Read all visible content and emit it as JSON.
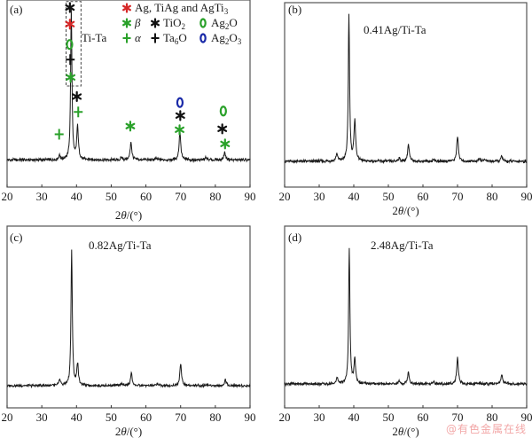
{
  "chart_data": [
    {
      "type": "line",
      "panel_tag": "(a)",
      "title": "",
      "xlabel": "2θ/(°)",
      "ylabel": "",
      "xlim": [
        20,
        90
      ],
      "ylim": [
        -18,
        106
      ],
      "xticks": [
        20,
        30,
        40,
        50,
        60,
        70,
        80,
        90
      ],
      "grid": false,
      "series": [
        {
          "name": "Ti-Ta",
          "baseline": 0,
          "peaks": [
            {
              "x": 35.1,
              "y": 3
            },
            {
              "x": 38.5,
              "y": 100
            },
            {
              "x": 40.3,
              "y": 22
            },
            {
              "x": 53.0,
              "y": 1.5
            },
            {
              "x": 55.7,
              "y": 12
            },
            {
              "x": 63.0,
              "y": 1
            },
            {
              "x": 69.8,
              "y": 19
            },
            {
              "x": 77.3,
              "y": 1.5
            },
            {
              "x": 82.7,
              "y": 5
            }
          ]
        }
      ],
      "annotations": {
        "box_label": "Ti-Ta",
        "box": {
          "x": [
            37.0,
            41.3
          ],
          "y": [
            49,
            105
          ]
        }
      },
      "markers": [
        {
          "symbol": "star",
          "color": "#111111",
          "x": 38.1,
          "y": 101
        },
        {
          "symbol": "star",
          "color": "#d62828",
          "x": 38.1,
          "y": 90
        },
        {
          "symbol": "circle",
          "color": "#2aa12a",
          "x": 38.0,
          "y": 76.5
        },
        {
          "symbol": "plus",
          "color": "#111111",
          "x": 38.2,
          "y": 66.5
        },
        {
          "symbol": "star",
          "color": "#2aa12a",
          "x": 38.3,
          "y": 54.7
        },
        {
          "symbol": "star",
          "color": "#111111",
          "x": 40.1,
          "y": 42
        },
        {
          "symbol": "plus",
          "color": "#2aa12a",
          "x": 40.5,
          "y": 31.8
        },
        {
          "symbol": "plus",
          "color": "#2aa12a",
          "x": 35.0,
          "y": 17
        },
        {
          "symbol": "star",
          "color": "#2aa12a",
          "x": 55.5,
          "y": 22.4
        },
        {
          "symbol": "circle",
          "color": "#1a2aa8",
          "x": 69.8,
          "y": 38
        },
        {
          "symbol": "star",
          "color": "#111111",
          "x": 69.9,
          "y": 29.4
        },
        {
          "symbol": "star",
          "color": "#2aa12a",
          "x": 69.7,
          "y": 20
        },
        {
          "symbol": "circle",
          "color": "#2aa12a",
          "x": 82.3,
          "y": 32.4
        },
        {
          "symbol": "star",
          "color": "#111111",
          "x": 82.0,
          "y": 20.6
        },
        {
          "symbol": "star",
          "color": "#2aa12a",
          "x": 82.8,
          "y": 10.6
        }
      ],
      "legend": {
        "placement": "top-right",
        "entries": [
          {
            "symbol": "star",
            "color": "#d62828",
            "label": "Ag, TiAg and AgTi3",
            "base": "Ag, TiAg and AgTi",
            "sub": "3"
          },
          {
            "symbol": "star",
            "color": "#2aa12a",
            "label": "β",
            "base": "β",
            "sub": "",
            "italic": true
          },
          {
            "symbol": "star",
            "color": "#111111",
            "label": "TiO2",
            "base": "TiO",
            "sub": "2"
          },
          {
            "symbol": "circle",
            "color": "#2aa12a",
            "label": "Ag2O",
            "base": "Ag",
            "sub": "2",
            "tail": "O"
          },
          {
            "symbol": "plus",
            "color": "#2aa12a",
            "label": "α",
            "base": "α",
            "sub": "",
            "italic": true
          },
          {
            "symbol": "plus",
            "color": "#111111",
            "label": "Ta6O",
            "base": "Ta",
            "sub": "6",
            "tail": "O"
          },
          {
            "symbol": "circle",
            "color": "#1a2aa8",
            "label": "Ag2O3",
            "base": "Ag",
            "sub": "2",
            "tail": "O",
            "sub2": "3"
          }
        ]
      }
    },
    {
      "type": "line",
      "panel_tag": "(b)",
      "sample_label": "0.41Ag/Ti-Ta",
      "xlabel": "2θ/(°)",
      "xlim": [
        20,
        90
      ],
      "ylim": [
        -17.5,
        107.8
      ],
      "xticks": [
        20,
        30,
        40,
        50,
        60,
        70,
        80,
        90
      ],
      "grid": false,
      "series": [
        {
          "name": "0.41Ag/Ti-Ta",
          "baseline": 0,
          "peaks": [
            {
              "x": 35.1,
              "y": 5
            },
            {
              "x": 38.6,
              "y": 100
            },
            {
              "x": 40.3,
              "y": 28
            },
            {
              "x": 53.1,
              "y": 2
            },
            {
              "x": 55.8,
              "y": 11.5
            },
            {
              "x": 63.2,
              "y": 1.5
            },
            {
              "x": 70.0,
              "y": 17
            },
            {
              "x": 76.4,
              "y": 2
            },
            {
              "x": 77.9,
              "y": 1.5
            },
            {
              "x": 82.8,
              "y": 3.6
            }
          ]
        }
      ]
    },
    {
      "type": "line",
      "panel_tag": "(c)",
      "sample_label": "0.82Ag/Ti-Ta",
      "xlabel": "2θ/(°)",
      "xlim": [
        20,
        90
      ],
      "ylim": [
        -16.4,
        118
      ],
      "xticks": [
        20,
        30,
        40,
        50,
        60,
        70,
        80,
        90
      ],
      "grid": false,
      "series": [
        {
          "name": "0.82Ag/Ti-Ta",
          "baseline": 0,
          "peaks": [
            {
              "x": 35.2,
              "y": 4.6
            },
            {
              "x": 38.6,
              "y": 100
            },
            {
              "x": 40.3,
              "y": 16
            },
            {
              "x": 53.0,
              "y": 2
            },
            {
              "x": 55.8,
              "y": 9.2
            },
            {
              "x": 63.3,
              "y": 1.5
            },
            {
              "x": 70.0,
              "y": 16.5
            },
            {
              "x": 77.5,
              "y": 1
            },
            {
              "x": 82.9,
              "y": 4.6
            }
          ]
        }
      ]
    },
    {
      "type": "line",
      "panel_tag": "(d)",
      "sample_label": "2.48Ag/Ti-Ta",
      "xlabel": "2θ/(°)",
      "xlim": [
        20,
        90
      ],
      "ylim": [
        -17.6,
        116
      ],
      "xticks": [
        20,
        30,
        40,
        50,
        60,
        70,
        80,
        90
      ],
      "grid": false,
      "series": [
        {
          "name": "2.48Ag/Ti-Ta",
          "baseline": 0,
          "peaks": [
            {
              "x": 35.2,
              "y": 4.6
            },
            {
              "x": 38.7,
              "y": 100
            },
            {
              "x": 40.3,
              "y": 18
            },
            {
              "x": 53.1,
              "y": 2
            },
            {
              "x": 55.8,
              "y": 9.2
            },
            {
              "x": 63.2,
              "y": 1.5
            },
            {
              "x": 70.0,
              "y": 19.6
            },
            {
              "x": 76.5,
              "y": 1
            },
            {
              "x": 82.8,
              "y": 7.2
            }
          ]
        }
      ]
    }
  ],
  "watermark": "@有色金属在线"
}
